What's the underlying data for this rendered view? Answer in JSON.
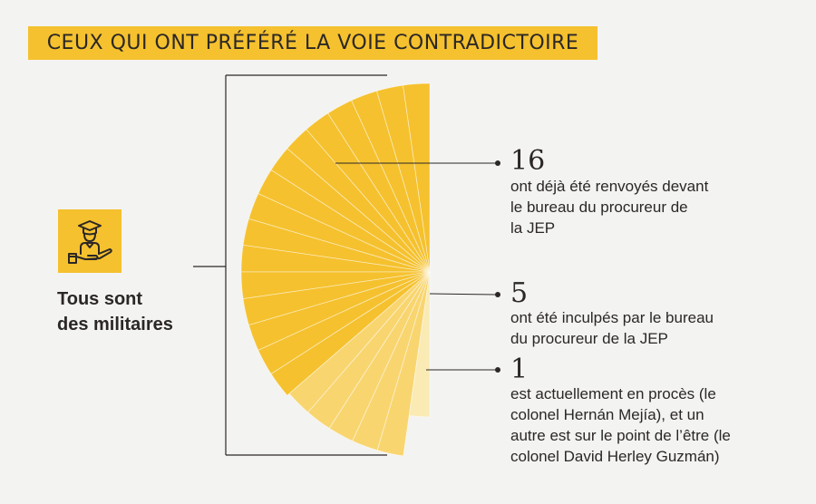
{
  "title": "CEUX QUI ONT PRÉFÉRÉ LA VOIE CONTRADICTOIRE",
  "subject": {
    "line1": "Tous sont",
    "line2": "des militaires",
    "icon": "soldier-in-hand-icon"
  },
  "colors": {
    "accent": "#f5c12e",
    "light": "#f8d56f",
    "lighter": "#faeab4",
    "text": "#2b2726",
    "background": "#f3f3f1"
  },
  "chart_data": {
    "type": "pie",
    "slices": [
      {
        "value": 16,
        "label": "16",
        "text": [
          "ont déjà été renvoyés devant",
          "le bureau du procureur de",
          "la JEP"
        ]
      },
      {
        "value": 5,
        "label": "5",
        "text": [
          "ont été inculpés par le bureau",
          "du procureur de la JEP"
        ]
      },
      {
        "value": 1,
        "label": "1",
        "text": [
          "est actuellement en procès (le",
          "colonel Hernán Mejía), et un",
          "autre est sur le point de l’être (le",
          "colonel David Herley Guzmán)"
        ]
      }
    ]
  }
}
